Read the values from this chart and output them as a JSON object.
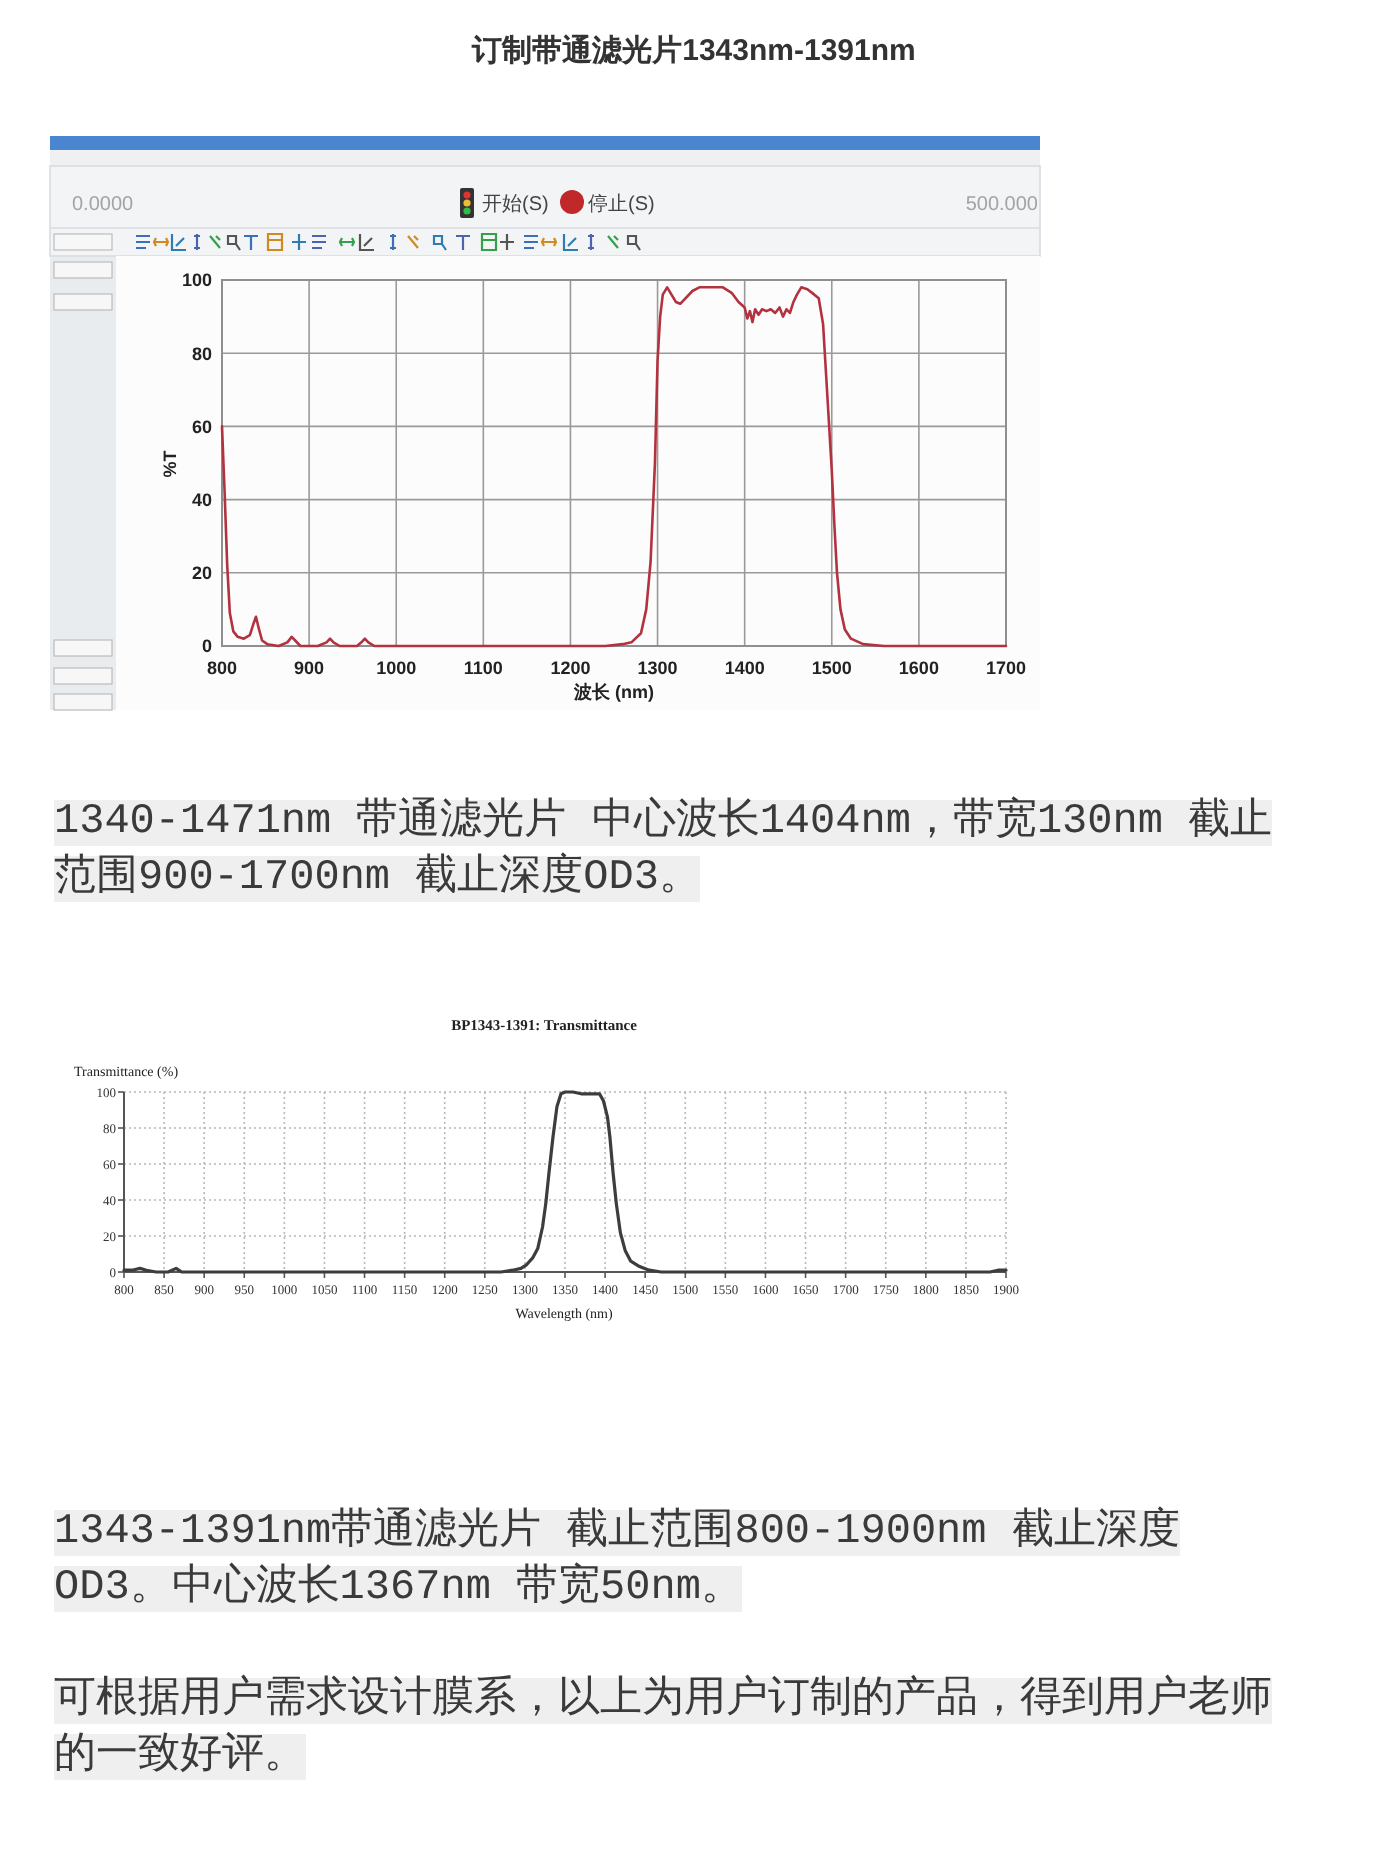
{
  "chart_data": [
    {
      "type": "line",
      "title": "订制带通滤光片1343nm-1391nm",
      "xlabel": "波长 (nm)",
      "ylabel": "%T",
      "xlim": [
        800,
        1700
      ],
      "ylim": [
        0,
        100
      ],
      "xticks": [
        800,
        900,
        1000,
        1100,
        1200,
        1300,
        1400,
        1500,
        1600,
        1700
      ],
      "yticks": [
        0,
        20,
        40,
        60,
        80,
        100
      ],
      "grid": true,
      "x": [
        800,
        803,
        806,
        809,
        813,
        818,
        825,
        832,
        836,
        839,
        842,
        846,
        852,
        865,
        875,
        880,
        884,
        890,
        910,
        920,
        924,
        928,
        935,
        955,
        960,
        964,
        968,
        975,
        1000,
        1100,
        1200,
        1240,
        1260,
        1270,
        1281,
        1287,
        1292,
        1297,
        1300,
        1303,
        1306,
        1311,
        1316,
        1321,
        1326,
        1332,
        1340,
        1348,
        1360,
        1375,
        1385,
        1393,
        1400,
        1403,
        1406,
        1409,
        1412,
        1416,
        1420,
        1425,
        1430,
        1435,
        1440,
        1444,
        1448,
        1452,
        1456,
        1460,
        1465,
        1472,
        1480,
        1485,
        1490,
        1494,
        1497,
        1500,
        1503,
        1506,
        1510,
        1515,
        1522,
        1536,
        1560,
        1600,
        1700
      ],
      "series": [
        {
          "color": "#b2323f",
          "values": [
            60,
            42,
            22,
            9,
            4,
            2.5,
            2,
            3,
            6,
            8,
            5,
            1.5,
            0.5,
            0,
            1,
            2.5,
            1.5,
            0,
            0,
            1,
            2,
            1,
            0,
            0,
            1,
            2,
            1,
            0,
            0,
            0,
            0,
            0,
            0.5,
            1,
            3.5,
            10,
            23,
            50,
            78,
            90,
            96,
            98,
            96,
            94,
            93.5,
            95,
            97,
            98,
            98,
            98,
            96.5,
            94,
            92.5,
            89.5,
            91.5,
            88.5,
            92,
            90.5,
            92,
            91.5,
            92,
            91,
            92.5,
            90,
            92,
            91,
            94,
            96,
            98,
            97.5,
            96,
            95,
            88,
            72,
            60,
            48,
            33,
            20,
            10,
            4.5,
            2,
            0.5,
            0,
            0,
            0
          ]
        }
      ],
      "annotations": [
        "0.0000",
        "开始(S)",
        "停止(S)",
        "500.000",
        "1340-1471nm 带通滤光片 中心波长1404nm，带宽130nm 截止范围900-1700nm 截止深度OD3。"
      ]
    },
    {
      "type": "line",
      "title": "BP1343-1391: Transmittance",
      "xlabel": "Wavelength (nm)",
      "ylabel": "Transmittance (%)",
      "xlim": [
        800,
        1900
      ],
      "ylim": [
        0,
        100
      ],
      "xticks": [
        800,
        850,
        900,
        950,
        1000,
        1050,
        1100,
        1150,
        1200,
        1250,
        1300,
        1350,
        1400,
        1450,
        1500,
        1550,
        1600,
        1650,
        1700,
        1750,
        1800,
        1850,
        1900
      ],
      "yticks": [
        0,
        20,
        40,
        60,
        80,
        100
      ],
      "grid": true,
      "x": [
        800,
        810,
        820,
        828,
        840,
        855,
        865,
        872,
        900,
        1000,
        1100,
        1200,
        1250,
        1270,
        1285,
        1295,
        1302,
        1310,
        1316,
        1322,
        1326,
        1330,
        1335,
        1340,
        1345,
        1350,
        1360,
        1370,
        1385,
        1393,
        1398,
        1403,
        1406,
        1410,
        1414,
        1419,
        1425,
        1432,
        1443,
        1455,
        1470,
        1500,
        1600,
        1700,
        1800,
        1880,
        1890,
        1900
      ],
      "series": [
        {
          "color": "#3d3d3d",
          "values": [
            1,
            1,
            2,
            1,
            0,
            0,
            2,
            0,
            0,
            0,
            0,
            0,
            0,
            0,
            1,
            2,
            4,
            8,
            13,
            25,
            38,
            55,
            75,
            92,
            99,
            100,
            100,
            99,
            99,
            99,
            95,
            86,
            75,
            55,
            38,
            22,
            12,
            6,
            3,
            1,
            0,
            0,
            0,
            0,
            0,
            0,
            1,
            1
          ]
        }
      ],
      "annotations": [
        "1343-1391nm带通滤光片 截止范围800-1900nm 截止深度OD3。中心波长1367nm 带宽50nm。",
        "可根据用户需求设计膜系，以上为用户订制的产品，得到用户老师的一致好评。"
      ]
    }
  ]
}
